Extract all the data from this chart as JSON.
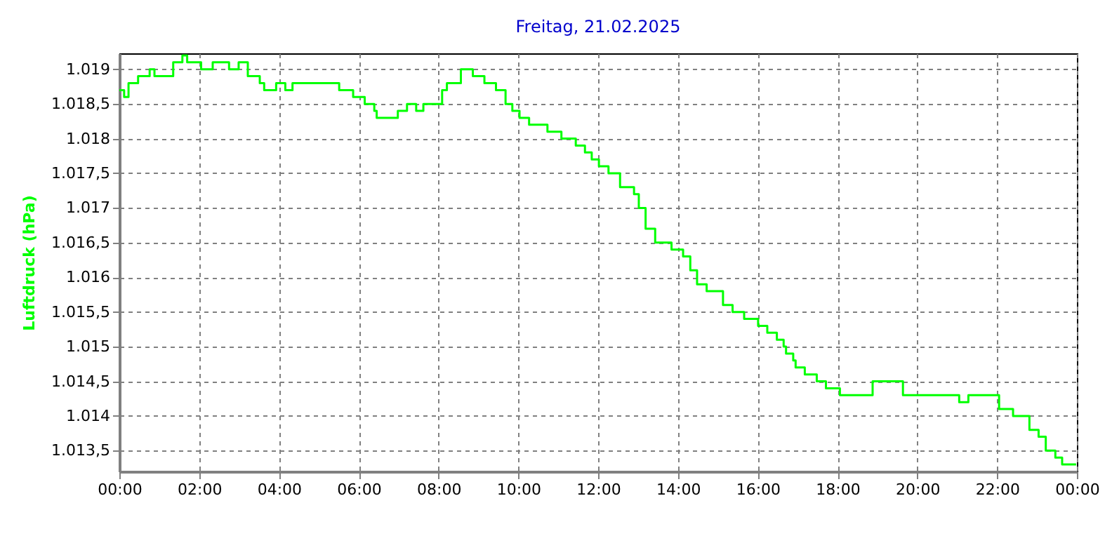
{
  "chart_data": {
    "type": "step",
    "title": "Freitag, 21.02.2025",
    "ylabel": "Luftdruck (hPa)",
    "grid": true,
    "xlim": [
      0,
      24
    ],
    "ylim": [
      1013.2,
      1019.23
    ],
    "xticks": [
      {
        "value": 0,
        "label": "00:00"
      },
      {
        "value": 2,
        "label": "02:00"
      },
      {
        "value": 4,
        "label": "04:00"
      },
      {
        "value": 6,
        "label": "06:00"
      },
      {
        "value": 8,
        "label": "08:00"
      },
      {
        "value": 10,
        "label": "10:00"
      },
      {
        "value": 12,
        "label": "12:00"
      },
      {
        "value": 14,
        "label": "14:00"
      },
      {
        "value": 16,
        "label": "16:00"
      },
      {
        "value": 18,
        "label": "18:00"
      },
      {
        "value": 20,
        "label": "20:00"
      },
      {
        "value": 22,
        "label": "22:00"
      },
      {
        "value": 24,
        "label": "00:00"
      }
    ],
    "yticks": [
      {
        "value": 1013.5,
        "label": "1.013,5"
      },
      {
        "value": 1014,
        "label": "1.014"
      },
      {
        "value": 1014.5,
        "label": "1.014,5"
      },
      {
        "value": 1015,
        "label": "1.015"
      },
      {
        "value": 1015.5,
        "label": "1.015,5"
      },
      {
        "value": 1016,
        "label": "1.016"
      },
      {
        "value": 1016.5,
        "label": "1.016,5"
      },
      {
        "value": 1017,
        "label": "1.017"
      },
      {
        "value": 1017.5,
        "label": "1.017,5"
      },
      {
        "value": 1018,
        "label": "1.018"
      },
      {
        "value": 1018.5,
        "label": "1.018,5"
      },
      {
        "value": 1019,
        "label": "1.019"
      }
    ],
    "x": [
      0,
      0.12,
      0.23,
      0.35,
      0.47,
      0.64,
      0.76,
      0.88,
      1.23,
      1.35,
      1.52,
      1.58,
      1.7,
      1.99,
      2.05,
      2.34,
      2.75,
      2.99,
      3.22,
      3.52,
      3.63,
      3.93,
      4.16,
      4.34,
      4.81,
      5.1,
      5.51,
      5.86,
      6.15,
      6.39,
      6.45,
      6.74,
      6.98,
      7.21,
      7.44,
      7.62,
      7.97,
      8.09,
      8.21,
      8.44,
      8.56,
      8.8,
      8.86,
      9.15,
      9.44,
      9.68,
      9.85,
      10.03,
      10.27,
      10.56,
      10.73,
      10.97,
      11.08,
      11.44,
      11.67,
      11.84,
      12.02,
      12.26,
      12.55,
      12.78,
      12.9,
      13.02,
      13.19,
      13.43,
      13.66,
      13.84,
      14.13,
      14.31,
      14.48,
      14.72,
      14.95,
      15.13,
      15.37,
      15.66,
      15.89,
      16.01,
      16.24,
      16.48,
      16.65,
      16.71,
      16.89,
      16.95,
      17.18,
      17.48,
      17.71,
      18.06,
      18.59,
      18.88,
      19.06,
      19.41,
      19.64,
      19.88,
      20.17,
      20.58,
      20.87,
      21.05,
      21.28,
      21.87,
      22.05,
      22.4,
      22.69,
      22.81,
      23.04,
      23.22,
      23.46,
      23.63,
      23.98
    ],
    "series": [
      {
        "color": "#00ff00",
        "values": [
          1018.7,
          1018.6,
          1018.8,
          1018.8,
          1018.9,
          1018.9,
          1019.0,
          1018.9,
          1018.9,
          1019.1,
          1019.1,
          1019.2,
          1019.1,
          1019.1,
          1019.0,
          1019.1,
          1019.0,
          1019.1,
          1018.9,
          1018.8,
          1018.7,
          1018.8,
          1018.7,
          1018.8,
          1018.8,
          1018.8,
          1018.7,
          1018.6,
          1018.5,
          1018.4,
          1018.3,
          1018.3,
          1018.4,
          1018.5,
          1018.4,
          1018.5,
          1018.5,
          1018.7,
          1018.8,
          1018.8,
          1019.0,
          1019.0,
          1018.9,
          1018.8,
          1018.7,
          1018.5,
          1018.4,
          1018.3,
          1018.2,
          1018.2,
          1018.1,
          1018.1,
          1018.0,
          1017.9,
          1017.8,
          1017.7,
          1017.6,
          1017.5,
          1017.3,
          1017.3,
          1017.2,
          1017.0,
          1016.7,
          1016.5,
          1016.5,
          1016.4,
          1016.3,
          1016.1,
          1015.9,
          1015.8,
          1015.8,
          1015.6,
          1015.5,
          1015.4,
          1015.4,
          1015.3,
          1015.2,
          1015.1,
          1015.0,
          1014.9,
          1014.8,
          1014.7,
          1014.6,
          1014.5,
          1014.4,
          1014.3,
          1014.3,
          1014.5,
          1014.5,
          1014.5,
          1014.3,
          1014.3,
          1014.3,
          1014.3,
          1014.3,
          1014.2,
          1014.3,
          1014.3,
          1014.1,
          1014.0,
          1014.0,
          1013.8,
          1013.7,
          1013.5,
          1013.4,
          1013.3,
          1013.3
        ]
      }
    ]
  }
}
